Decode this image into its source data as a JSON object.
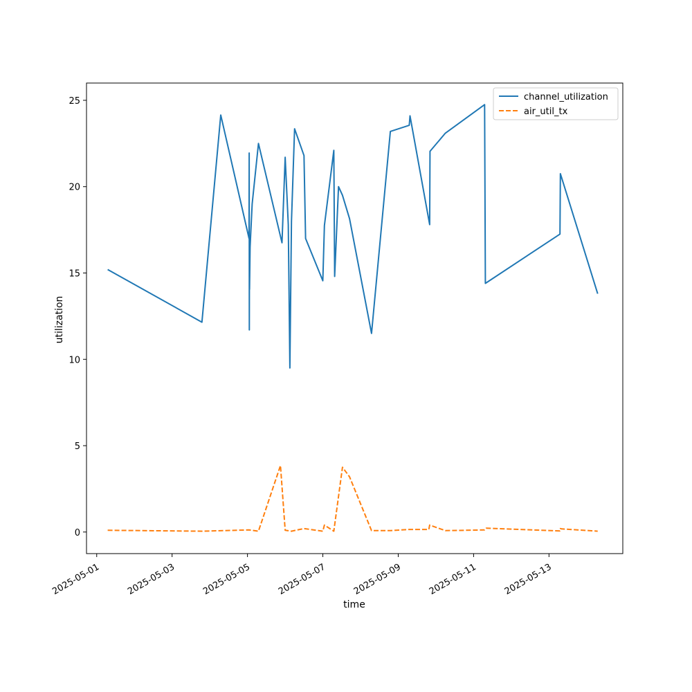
{
  "chart_data": {
    "type": "line",
    "xlabel": "time",
    "ylabel": "utilization",
    "x_ticks": [
      "2025-05-01",
      "2025-05-03",
      "2025-05-05",
      "2025-05-07",
      "2025-05-09",
      "2025-05-11",
      "2025-05-13"
    ],
    "y_ticks": [
      0,
      5,
      10,
      15,
      20,
      25
    ],
    "xlim": [
      "2025-04-30T17:30",
      "2025-05-14T23:00"
    ],
    "ylim": [
      -1.25,
      26.0
    ],
    "legend_position": "top-right",
    "grid": false,
    "series": [
      {
        "name": "channel_utilization",
        "color": "#1f77b4",
        "style": "solid",
        "x": [
          "2025-05-01T07:00",
          "2025-05-03T19:00",
          "2025-05-04T07:00",
          "2025-05-05T01:00",
          "2025-05-05T01:05",
          "2025-05-05T01:10",
          "2025-05-05T01:15",
          "2025-05-05T01:20",
          "2025-05-05T01:40",
          "2025-05-05T03:00",
          "2025-05-05T07:00",
          "2025-05-05T22:00",
          "2025-05-06T00:00",
          "2025-05-06T02:00",
          "2025-05-06T03:00",
          "2025-05-06T04:00",
          "2025-05-06T06:00",
          "2025-05-06T12:00",
          "2025-05-06T13:00",
          "2025-05-07T00:00",
          "2025-05-07T01:00",
          "2025-05-07T07:00",
          "2025-05-07T07:30",
          "2025-05-07T10:00",
          "2025-05-07T12:30",
          "2025-05-07T17:00",
          "2025-05-08T07:00",
          "2025-05-08T19:00",
          "2025-05-09T07:00",
          "2025-05-09T07:30",
          "2025-05-09T20:00",
          "2025-05-09T20:15",
          "2025-05-10T06:00",
          "2025-05-11T07:00",
          "2025-05-11T07:30",
          "2025-05-13T07:00",
          "2025-05-13T07:15",
          "2025-05-14T07:00"
        ],
        "y": [
          15.2,
          12.15,
          24.15,
          17.0,
          21.95,
          11.7,
          16.7,
          14.05,
          16.5,
          19.0,
          22.5,
          16.75,
          21.7,
          17.8,
          9.5,
          18.0,
          23.35,
          21.8,
          17.0,
          14.55,
          17.75,
          22.1,
          14.8,
          20.0,
          19.5,
          18.15,
          11.5,
          23.2,
          23.55,
          24.1,
          17.8,
          22.05,
          23.1,
          24.75,
          14.4,
          17.25,
          20.75,
          13.8
        ]
      },
      {
        "name": "air_util_tx",
        "color": "#ff7f0e",
        "style": "dashed",
        "x": [
          "2025-05-01T07:00",
          "2025-05-03T19:00",
          "2025-05-05T01:00",
          "2025-05-05T07:00",
          "2025-05-05T21:00",
          "2025-05-06T00:00",
          "2025-05-06T04:00",
          "2025-05-06T12:00",
          "2025-05-07T00:00",
          "2025-05-07T01:00",
          "2025-05-07T07:00",
          "2025-05-07T12:30",
          "2025-05-07T17:00",
          "2025-05-08T07:00",
          "2025-05-08T19:00",
          "2025-05-09T07:00",
          "2025-05-09T19:30",
          "2025-05-09T20:00",
          "2025-05-10T06:00",
          "2025-05-11T07:00",
          "2025-05-11T08:00",
          "2025-05-13T07:00",
          "2025-05-13T07:15",
          "2025-05-13T08:00",
          "2025-05-14T07:00"
        ],
        "y": [
          0.1,
          0.05,
          0.12,
          0.05,
          3.85,
          0.1,
          0.05,
          0.2,
          0.05,
          0.4,
          0.05,
          3.75,
          3.2,
          0.08,
          0.08,
          0.15,
          0.15,
          0.4,
          0.08,
          0.12,
          0.22,
          0.06,
          0.2,
          0.18,
          0.05
        ]
      }
    ]
  }
}
